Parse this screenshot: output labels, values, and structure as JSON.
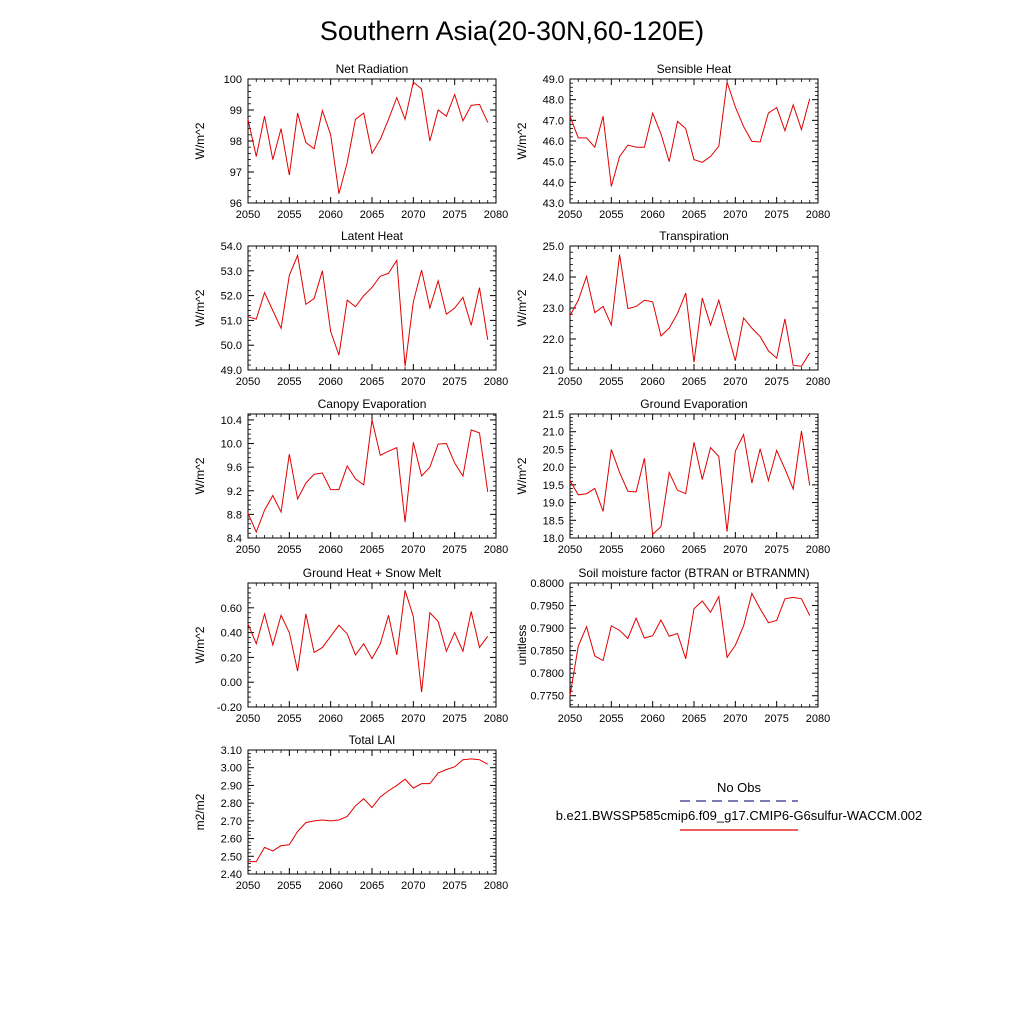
{
  "page_title": "Southern Asia(20-30N,60-120E)",
  "legend": {
    "obs_label": "No Obs",
    "obs_color": "#2a2a8c",
    "model_label": "b.e21.BWSSP585cmip6.f09_g17.CMIP6-G6sulfur-WACCM.002",
    "model_color": "#e00000"
  },
  "chart_data": [
    {
      "type": "line",
      "title": "Net Radiation",
      "ylabel": "W/m^2",
      "xlim": [
        2050,
        2080
      ],
      "ylim": [
        96,
        100
      ],
      "xticks": [
        2050,
        2055,
        2060,
        2065,
        2070,
        2075,
        2080
      ],
      "yticks": [
        96,
        97,
        98,
        99,
        100
      ],
      "ytick_labels": [
        "96",
        "97",
        "98",
        "99",
        "100"
      ],
      "x": [
        2050,
        2051,
        2052,
        2053,
        2054,
        2055,
        2056,
        2057,
        2058,
        2059,
        2060,
        2061,
        2062,
        2063,
        2064,
        2065,
        2066,
        2067,
        2068,
        2069,
        2070,
        2071,
        2072,
        2073,
        2074,
        2075,
        2076,
        2077,
        2078,
        2079
      ],
      "series": [
        {
          "name": "b.e21.BWSSP585cmip6.f09_g17.CMIP6-G6sulfur-WACCM.002",
          "values": [
            98.7,
            97.5,
            98.8,
            97.4,
            98.4,
            96.9,
            98.9,
            97.95,
            97.75,
            98.98,
            98.2,
            96.3,
            97.3,
            98.7,
            98.9,
            97.6,
            98.05,
            98.7,
            99.4,
            98.7,
            99.9,
            99.68,
            98.0,
            99.0,
            98.8,
            99.5,
            98.65,
            99.15,
            99.18,
            98.6
          ]
        }
      ]
    },
    {
      "type": "line",
      "title": "Sensible Heat",
      "ylabel": "W/m^2",
      "xlim": [
        2050,
        2080
      ],
      "ylim": [
        43,
        49
      ],
      "xticks": [
        2050,
        2055,
        2060,
        2065,
        2070,
        2075,
        2080
      ],
      "yticks": [
        43,
        44,
        45,
        46,
        47,
        48,
        49
      ],
      "ytick_labels": [
        "43.0",
        "44.0",
        "45.0",
        "46.0",
        "47.0",
        "48.0",
        "49.0"
      ],
      "x": [
        2050,
        2051,
        2052,
        2053,
        2054,
        2055,
        2056,
        2057,
        2058,
        2059,
        2060,
        2061,
        2062,
        2063,
        2064,
        2065,
        2066,
        2067,
        2068,
        2069,
        2070,
        2071,
        2072,
        2073,
        2074,
        2075,
        2076,
        2077,
        2078,
        2079
      ],
      "series": [
        {
          "name": "b.e21.BWSSP585cmip6.f09_g17.CMIP6-G6sulfur-WACCM.002",
          "values": [
            47.2,
            46.15,
            46.15,
            45.7,
            47.2,
            43.8,
            45.25,
            45.8,
            45.7,
            45.7,
            47.35,
            46.35,
            45.0,
            46.95,
            46.6,
            45.1,
            44.97,
            45.25,
            45.75,
            48.85,
            47.65,
            46.7,
            45.98,
            45.95,
            47.35,
            47.62,
            46.5,
            47.75,
            46.55,
            48.05
          ]
        }
      ]
    },
    {
      "type": "line",
      "title": "Latent Heat",
      "ylabel": "W/m^2",
      "xlim": [
        2050,
        2080
      ],
      "ylim": [
        49,
        54
      ],
      "xticks": [
        2050,
        2055,
        2060,
        2065,
        2070,
        2075,
        2080
      ],
      "yticks": [
        49,
        50,
        51,
        52,
        53,
        54
      ],
      "ytick_labels": [
        "49.0",
        "50.0",
        "51.0",
        "52.0",
        "53.0",
        "54.0"
      ],
      "x": [
        2050,
        2051,
        2052,
        2053,
        2054,
        2055,
        2056,
        2057,
        2058,
        2059,
        2060,
        2061,
        2062,
        2063,
        2064,
        2065,
        2066,
        2067,
        2068,
        2069,
        2070,
        2071,
        2072,
        2073,
        2074,
        2075,
        2076,
        2077,
        2078,
        2079
      ],
      "series": [
        {
          "name": "b.e21.BWSSP585cmip6.f09_g17.CMIP6-G6sulfur-WACCM.002",
          "values": [
            51.15,
            51.05,
            52.12,
            51.4,
            50.68,
            52.82,
            53.62,
            51.65,
            51.88,
            53.0,
            50.55,
            49.6,
            51.82,
            51.55,
            52.0,
            52.33,
            52.78,
            52.9,
            53.42,
            49.15,
            51.75,
            53.03,
            51.5,
            52.6,
            51.25,
            51.5,
            51.93,
            50.8,
            52.32,
            50.22
          ]
        }
      ]
    },
    {
      "type": "line",
      "title": "Transpiration",
      "ylabel": "W/m^2",
      "xlim": [
        2050,
        2080
      ],
      "ylim": [
        21,
        25
      ],
      "xticks": [
        2050,
        2055,
        2060,
        2065,
        2070,
        2075,
        2080
      ],
      "yticks": [
        21,
        22,
        23,
        24,
        25
      ],
      "ytick_labels": [
        "21.0",
        "22.0",
        "23.0",
        "24.0",
        "25.0"
      ],
      "x": [
        2050,
        2051,
        2052,
        2053,
        2054,
        2055,
        2056,
        2057,
        2058,
        2059,
        2060,
        2061,
        2062,
        2063,
        2064,
        2065,
        2066,
        2067,
        2068,
        2069,
        2070,
        2071,
        2072,
        2073,
        2074,
        2075,
        2076,
        2077,
        2078,
        2079
      ],
      "series": [
        {
          "name": "b.e21.BWSSP585cmip6.f09_g17.CMIP6-G6sulfur-WACCM.002",
          "values": [
            22.75,
            23.25,
            24.02,
            22.85,
            23.05,
            22.45,
            24.72,
            22.98,
            23.05,
            23.25,
            23.2,
            22.1,
            22.35,
            22.82,
            23.48,
            21.25,
            23.32,
            22.45,
            23.25,
            22.25,
            21.3,
            22.68,
            22.35,
            22.08,
            21.62,
            21.38,
            22.65,
            21.15,
            21.12,
            21.55
          ]
        }
      ]
    },
    {
      "type": "line",
      "title": "Canopy Evaporation",
      "ylabel": "W/m^2",
      "xlim": [
        2050,
        2080
      ],
      "ylim": [
        8.4,
        10.5
      ],
      "xticks": [
        2050,
        2055,
        2060,
        2065,
        2070,
        2075,
        2080
      ],
      "yticks": [
        8.4,
        8.8,
        9.2,
        9.6,
        10.0,
        10.4
      ],
      "ytick_labels": [
        "8.4",
        "8.8",
        "9.2",
        "9.6",
        "10.0",
        "10.4"
      ],
      "x": [
        2050,
        2051,
        2052,
        2053,
        2054,
        2055,
        2056,
        2057,
        2058,
        2059,
        2060,
        2061,
        2062,
        2063,
        2064,
        2065,
        2066,
        2067,
        2068,
        2069,
        2070,
        2071,
        2072,
        2073,
        2074,
        2075,
        2076,
        2077,
        2078,
        2079
      ],
      "series": [
        {
          "name": "b.e21.BWSSP585cmip6.f09_g17.CMIP6-G6sulfur-WACCM.002",
          "values": [
            8.82,
            8.5,
            8.87,
            9.12,
            8.84,
            9.82,
            9.06,
            9.33,
            9.48,
            9.5,
            9.22,
            9.22,
            9.62,
            9.4,
            9.3,
            10.4,
            9.8,
            9.87,
            9.93,
            8.67,
            10.02,
            9.45,
            9.6,
            9.99,
            10.0,
            9.67,
            9.45,
            10.23,
            10.18,
            9.18
          ]
        }
      ]
    },
    {
      "type": "line",
      "title": "Ground Evaporation",
      "ylabel": "W/m^2",
      "xlim": [
        2050,
        2080
      ],
      "ylim": [
        18,
        21.5
      ],
      "xticks": [
        2050,
        2055,
        2060,
        2065,
        2070,
        2075,
        2080
      ],
      "yticks": [
        18.0,
        18.5,
        19.0,
        19.5,
        20.0,
        20.5,
        21.0,
        21.5
      ],
      "ytick_labels": [
        "18.0",
        "18.5",
        "19.0",
        "19.5",
        "20.0",
        "20.5",
        "21.0",
        "21.5"
      ],
      "x": [
        2050,
        2051,
        2052,
        2053,
        2054,
        2055,
        2056,
        2057,
        2058,
        2059,
        2060,
        2061,
        2062,
        2063,
        2064,
        2065,
        2066,
        2067,
        2068,
        2069,
        2070,
        2071,
        2072,
        2073,
        2074,
        2075,
        2076,
        2077,
        2078,
        2079
      ],
      "series": [
        {
          "name": "b.e21.BWSSP585cmip6.f09_g17.CMIP6-G6sulfur-WACCM.002",
          "values": [
            19.62,
            19.22,
            19.25,
            19.4,
            18.75,
            20.5,
            19.85,
            19.32,
            19.3,
            20.25,
            18.1,
            18.32,
            19.85,
            19.35,
            19.25,
            20.7,
            19.65,
            20.55,
            20.3,
            18.18,
            20.45,
            20.92,
            19.55,
            20.52,
            19.62,
            20.47,
            19.95,
            19.38,
            21.02,
            19.48
          ]
        }
      ]
    },
    {
      "type": "line",
      "title": "Ground Heat + Snow Melt",
      "ylabel": "W/m^2",
      "xlim": [
        2050,
        2080
      ],
      "ylim": [
        -0.2,
        0.8
      ],
      "xticks": [
        2050,
        2055,
        2060,
        2065,
        2070,
        2075,
        2080
      ],
      "yticks": [
        -0.2,
        0.0,
        0.2,
        0.4,
        0.6
      ],
      "ytick_labels": [
        "-0.20",
        "0.00",
        "0.20",
        "0.40",
        "0.60"
      ],
      "x": [
        2050,
        2051,
        2052,
        2053,
        2054,
        2055,
        2056,
        2057,
        2058,
        2059,
        2060,
        2061,
        2062,
        2063,
        2064,
        2065,
        2066,
        2067,
        2068,
        2069,
        2070,
        2071,
        2072,
        2073,
        2074,
        2075,
        2076,
        2077,
        2078,
        2079
      ],
      "series": [
        {
          "name": "b.e21.BWSSP585cmip6.f09_g17.CMIP6-G6sulfur-WACCM.002",
          "values": [
            0.47,
            0.31,
            0.55,
            0.3,
            0.54,
            0.4,
            0.09,
            0.55,
            0.24,
            0.28,
            0.37,
            0.46,
            0.39,
            0.22,
            0.31,
            0.19,
            0.31,
            0.54,
            0.22,
            0.74,
            0.53,
            -0.08,
            0.56,
            0.49,
            0.25,
            0.4,
            0.25,
            0.57,
            0.28,
            0.37
          ]
        }
      ]
    },
    {
      "type": "line",
      "title": "Soil moisture factor (BTRAN or BTRANMN)",
      "ylabel": "unitless",
      "xlim": [
        2050,
        2080
      ],
      "ylim": [
        0.7725,
        0.8
      ],
      "xticks": [
        2050,
        2055,
        2060,
        2065,
        2070,
        2075,
        2080
      ],
      "yticks": [
        0.775,
        0.78,
        0.785,
        0.79,
        0.795,
        0.8
      ],
      "ytick_labels": [
        "0.7750",
        "0.7800",
        "0.7850",
        "0.7900",
        "0.7950",
        "0.8000"
      ],
      "x": [
        2050,
        2051,
        2052,
        2053,
        2054,
        2055,
        2056,
        2057,
        2058,
        2059,
        2060,
        2061,
        2062,
        2063,
        2064,
        2065,
        2066,
        2067,
        2068,
        2069,
        2070,
        2071,
        2072,
        2073,
        2074,
        2075,
        2076,
        2077,
        2078,
        2079
      ],
      "series": [
        {
          "name": "b.e21.BWSSP585cmip6.f09_g17.CMIP6-G6sulfur-WACCM.002",
          "values": [
            0.775,
            0.786,
            0.7903,
            0.7838,
            0.7828,
            0.7905,
            0.7895,
            0.7877,
            0.7922,
            0.7878,
            0.7883,
            0.7918,
            0.7882,
            0.7888,
            0.7832,
            0.7943,
            0.796,
            0.7935,
            0.797,
            0.7835,
            0.7862,
            0.7905,
            0.7977,
            0.7943,
            0.7912,
            0.7917,
            0.7965,
            0.7968,
            0.7965,
            0.7928
          ]
        }
      ]
    },
    {
      "type": "line",
      "title": "Total LAI",
      "ylabel": "m2/m2",
      "xlim": [
        2050,
        2080
      ],
      "ylim": [
        2.4,
        3.1
      ],
      "xticks": [
        2050,
        2055,
        2060,
        2065,
        2070,
        2075,
        2080
      ],
      "yticks": [
        2.4,
        2.5,
        2.6,
        2.7,
        2.8,
        2.9,
        3.0,
        3.1
      ],
      "ytick_labels": [
        "2.40",
        "2.50",
        "2.60",
        "2.70",
        "2.80",
        "2.90",
        "3.00",
        "3.10"
      ],
      "x": [
        2050,
        2051,
        2052,
        2053,
        2054,
        2055,
        2056,
        2057,
        2058,
        2059,
        2060,
        2061,
        2062,
        2063,
        2064,
        2065,
        2066,
        2067,
        2068,
        2069,
        2070,
        2071,
        2072,
        2073,
        2074,
        2075,
        2076,
        2077,
        2078,
        2079
      ],
      "series": [
        {
          "name": "b.e21.BWSSP585cmip6.f09_g17.CMIP6-G6sulfur-WACCM.002",
          "values": [
            2.47,
            2.47,
            2.55,
            2.53,
            2.56,
            2.565,
            2.64,
            2.69,
            2.7,
            2.705,
            2.7,
            2.705,
            2.725,
            2.785,
            2.825,
            2.775,
            2.835,
            2.87,
            2.9,
            2.935,
            2.885,
            2.91,
            2.91,
            2.97,
            2.99,
            3.005,
            3.045,
            3.05,
            3.045,
            3.02
          ]
        }
      ]
    }
  ]
}
